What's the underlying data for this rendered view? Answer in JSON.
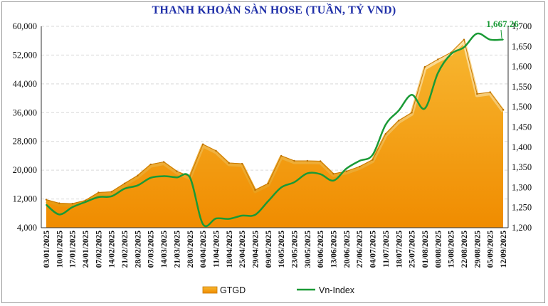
{
  "chart_data": {
    "type": "area",
    "title": "THANH KHOẢN SÀN HOSE (TUẦN, TỶ VND)",
    "categories": [
      "03/01/2025",
      "10/01/2025",
      "17/01/2025",
      "24/01/2025",
      "07/02/2025",
      "14/02/2025",
      "21/02/2025",
      "28/02/2025",
      "07/03/2025",
      "14/03/2025",
      "21/03/2025",
      "28/03/2025",
      "04/04/2025",
      "11/04/2025",
      "18/04/2025",
      "25/04/2025",
      "29/04/2025",
      "09/05/2025",
      "16/05/2025",
      "23/05/2025",
      "30/05/2025",
      "06/06/2025",
      "13/06/2025",
      "20/06/2025",
      "27/06/2025",
      "04/07/2025",
      "11/07/2025",
      "18/07/2025",
      "25/07/2025",
      "01/08/2025",
      "08/08/2025",
      "15/08/2025",
      "22/08/2025",
      "29/08/2025",
      "05/09/2025",
      "12/09/2025"
    ],
    "series": [
      {
        "name": "GTGD",
        "axis": "left",
        "type": "area",
        "color": "#f5a623",
        "values": [
          11800,
          10800,
          10700,
          11600,
          13800,
          14000,
          16300,
          18500,
          21600,
          22300,
          19700,
          18200,
          27200,
          25400,
          22000,
          21800,
          14500,
          16300,
          24000,
          22600,
          22600,
          22500,
          19000,
          19700,
          21000,
          22900,
          30100,
          33800,
          36000,
          48700,
          50800,
          52700,
          56300,
          41200,
          41700,
          36800
        ]
      },
      {
        "name": "Vn-Index",
        "axis": "right",
        "type": "line",
        "color": "#1a9a36",
        "values": [
          1257,
          1233,
          1251,
          1264,
          1276,
          1278,
          1297,
          1305,
          1324,
          1328,
          1325,
          1325,
          1209,
          1223,
          1222,
          1230,
          1232,
          1266,
          1300,
          1313,
          1335,
          1333,
          1317,
          1347,
          1366,
          1381,
          1456,
          1491,
          1530,
          1496,
          1584,
          1631,
          1648,
          1682,
          1667,
          1667.26
        ]
      }
    ],
    "y_left": {
      "min": 4000,
      "max": 60000,
      "ticks": [
        "4,000",
        "12,000",
        "20,000",
        "28,000",
        "36,000",
        "44,000",
        "52,000",
        "60,000"
      ]
    },
    "y_right": {
      "min": 1200,
      "max": 1700,
      "ticks": [
        "1,200",
        "1,250",
        "1,300",
        "1,350",
        "1,400",
        "1,450",
        "1,500",
        "1,550",
        "1,600",
        "1,650",
        "1,700"
      ]
    },
    "annotation": "1,667.26",
    "grid": true,
    "legend": {
      "placement": "bottom",
      "items": [
        "GTGD",
        "Vn-Index"
      ]
    }
  }
}
